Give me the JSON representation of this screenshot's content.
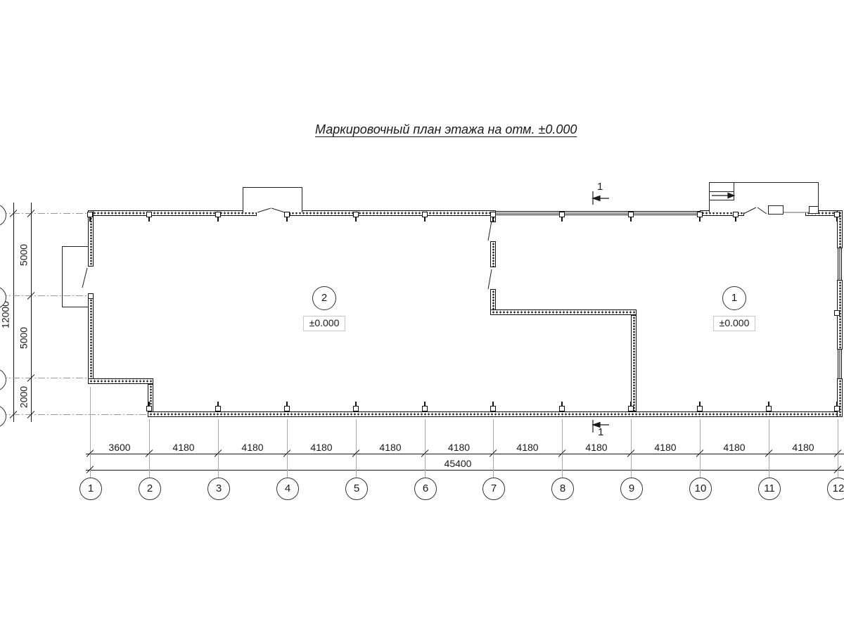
{
  "title": "Маркировочный план этажа на отм. ±0.000",
  "rooms": [
    {
      "number": "2",
      "elevation": "±0.000"
    },
    {
      "number": "1",
      "elevation": "±0.000"
    }
  ],
  "section_mark_label": "1",
  "dimensions": {
    "bottom_segments": [
      "3600",
      "4180",
      "4180",
      "4180",
      "4180",
      "4180",
      "4180",
      "4180",
      "4180",
      "4180",
      "4180"
    ],
    "bottom_total": "45400",
    "left_segments": [
      "5000",
      "5000",
      "2000"
    ],
    "left_total": "12000"
  },
  "grid_bubbles_bottom": [
    "1",
    "2",
    "3",
    "4",
    "5",
    "6",
    "7",
    "8",
    "9",
    "10",
    "11",
    "12"
  ],
  "colors": {
    "line": "#1a1a1a",
    "grid_line": "#a9a9a9",
    "elevation_box_border": "#c8c8c8"
  }
}
